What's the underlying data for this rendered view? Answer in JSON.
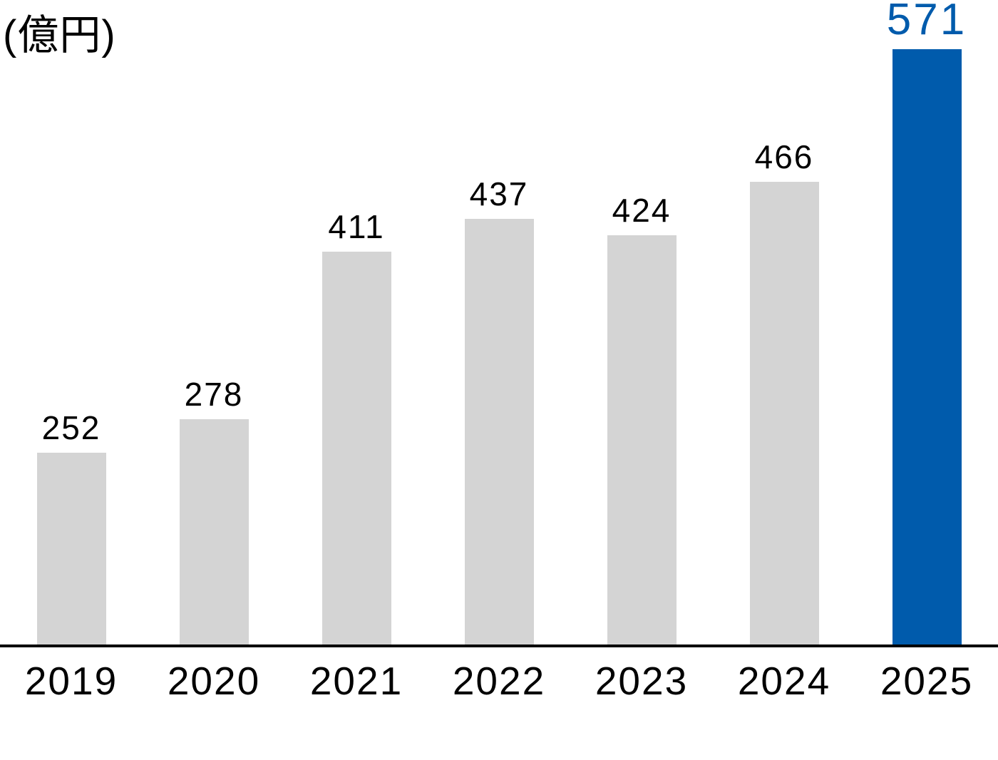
{
  "chart_data": {
    "type": "bar",
    "title": "(億円)",
    "categories": [
      "2019",
      "2020",
      "2021",
      "2022",
      "2023",
      "2024",
      "2025"
    ],
    "values": [
      252,
      278,
      411,
      437,
      424,
      466,
      571
    ],
    "highlight_category": "2025",
    "bar_color": "#d4d4d4",
    "highlight_color": "#005BAC",
    "value_label_color": "#000000",
    "highlight_value_label_color": "#005BAC",
    "axis_line_color": "#000000",
    "xlabel": "",
    "ylabel": "(億円)",
    "ylim": [
      100,
      580
    ],
    "grid": false,
    "legend": false
  }
}
